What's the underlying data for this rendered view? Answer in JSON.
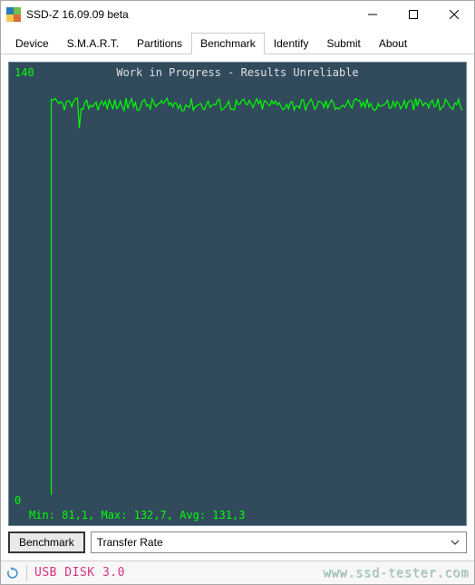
{
  "window": {
    "title": "SSD-Z 16.09.09 beta"
  },
  "tabs": {
    "items": [
      {
        "label": "Device"
      },
      {
        "label": "S.M.A.R.T."
      },
      {
        "label": "Partitions"
      },
      {
        "label": "Benchmark"
      },
      {
        "label": "Identify"
      },
      {
        "label": "Submit"
      },
      {
        "label": "About"
      }
    ],
    "active_index": 3
  },
  "chart": {
    "type": "line",
    "banner": "Work in Progress - Results Unreliable",
    "ylim": [
      0,
      140
    ],
    "ytick_top": "140",
    "ytick_bottom": "0",
    "background_color": "#314a5c",
    "border_color": "#6b8aa0",
    "line_color": "#00ff00",
    "text_color_banner": "#e0e0e0",
    "text_color_axis": "#00ff00",
    "text_color_stats": "#00ff00",
    "stats": "Min: 81,1, Max: 132,7, Avg: 131,3",
    "font_family": "Consolas, monospace",
    "label_fontsize": 12,
    "line_width": 1.2,
    "series": {
      "initial_x": 0.045,
      "initial_y": 0,
      "spike_y": 132.7,
      "plateau_y": 131.3,
      "noise_amplitude": 2.2,
      "dip_min": 81.1
    }
  },
  "controls": {
    "benchmark_button": "Benchmark",
    "dropdown_value": "Transfer Rate"
  },
  "statusbar": {
    "device": "USB DISK 3.0",
    "device_color": "#d63384",
    "watermark": "www.ssd-tester.com",
    "watermark_color": "#b4d4c8"
  }
}
